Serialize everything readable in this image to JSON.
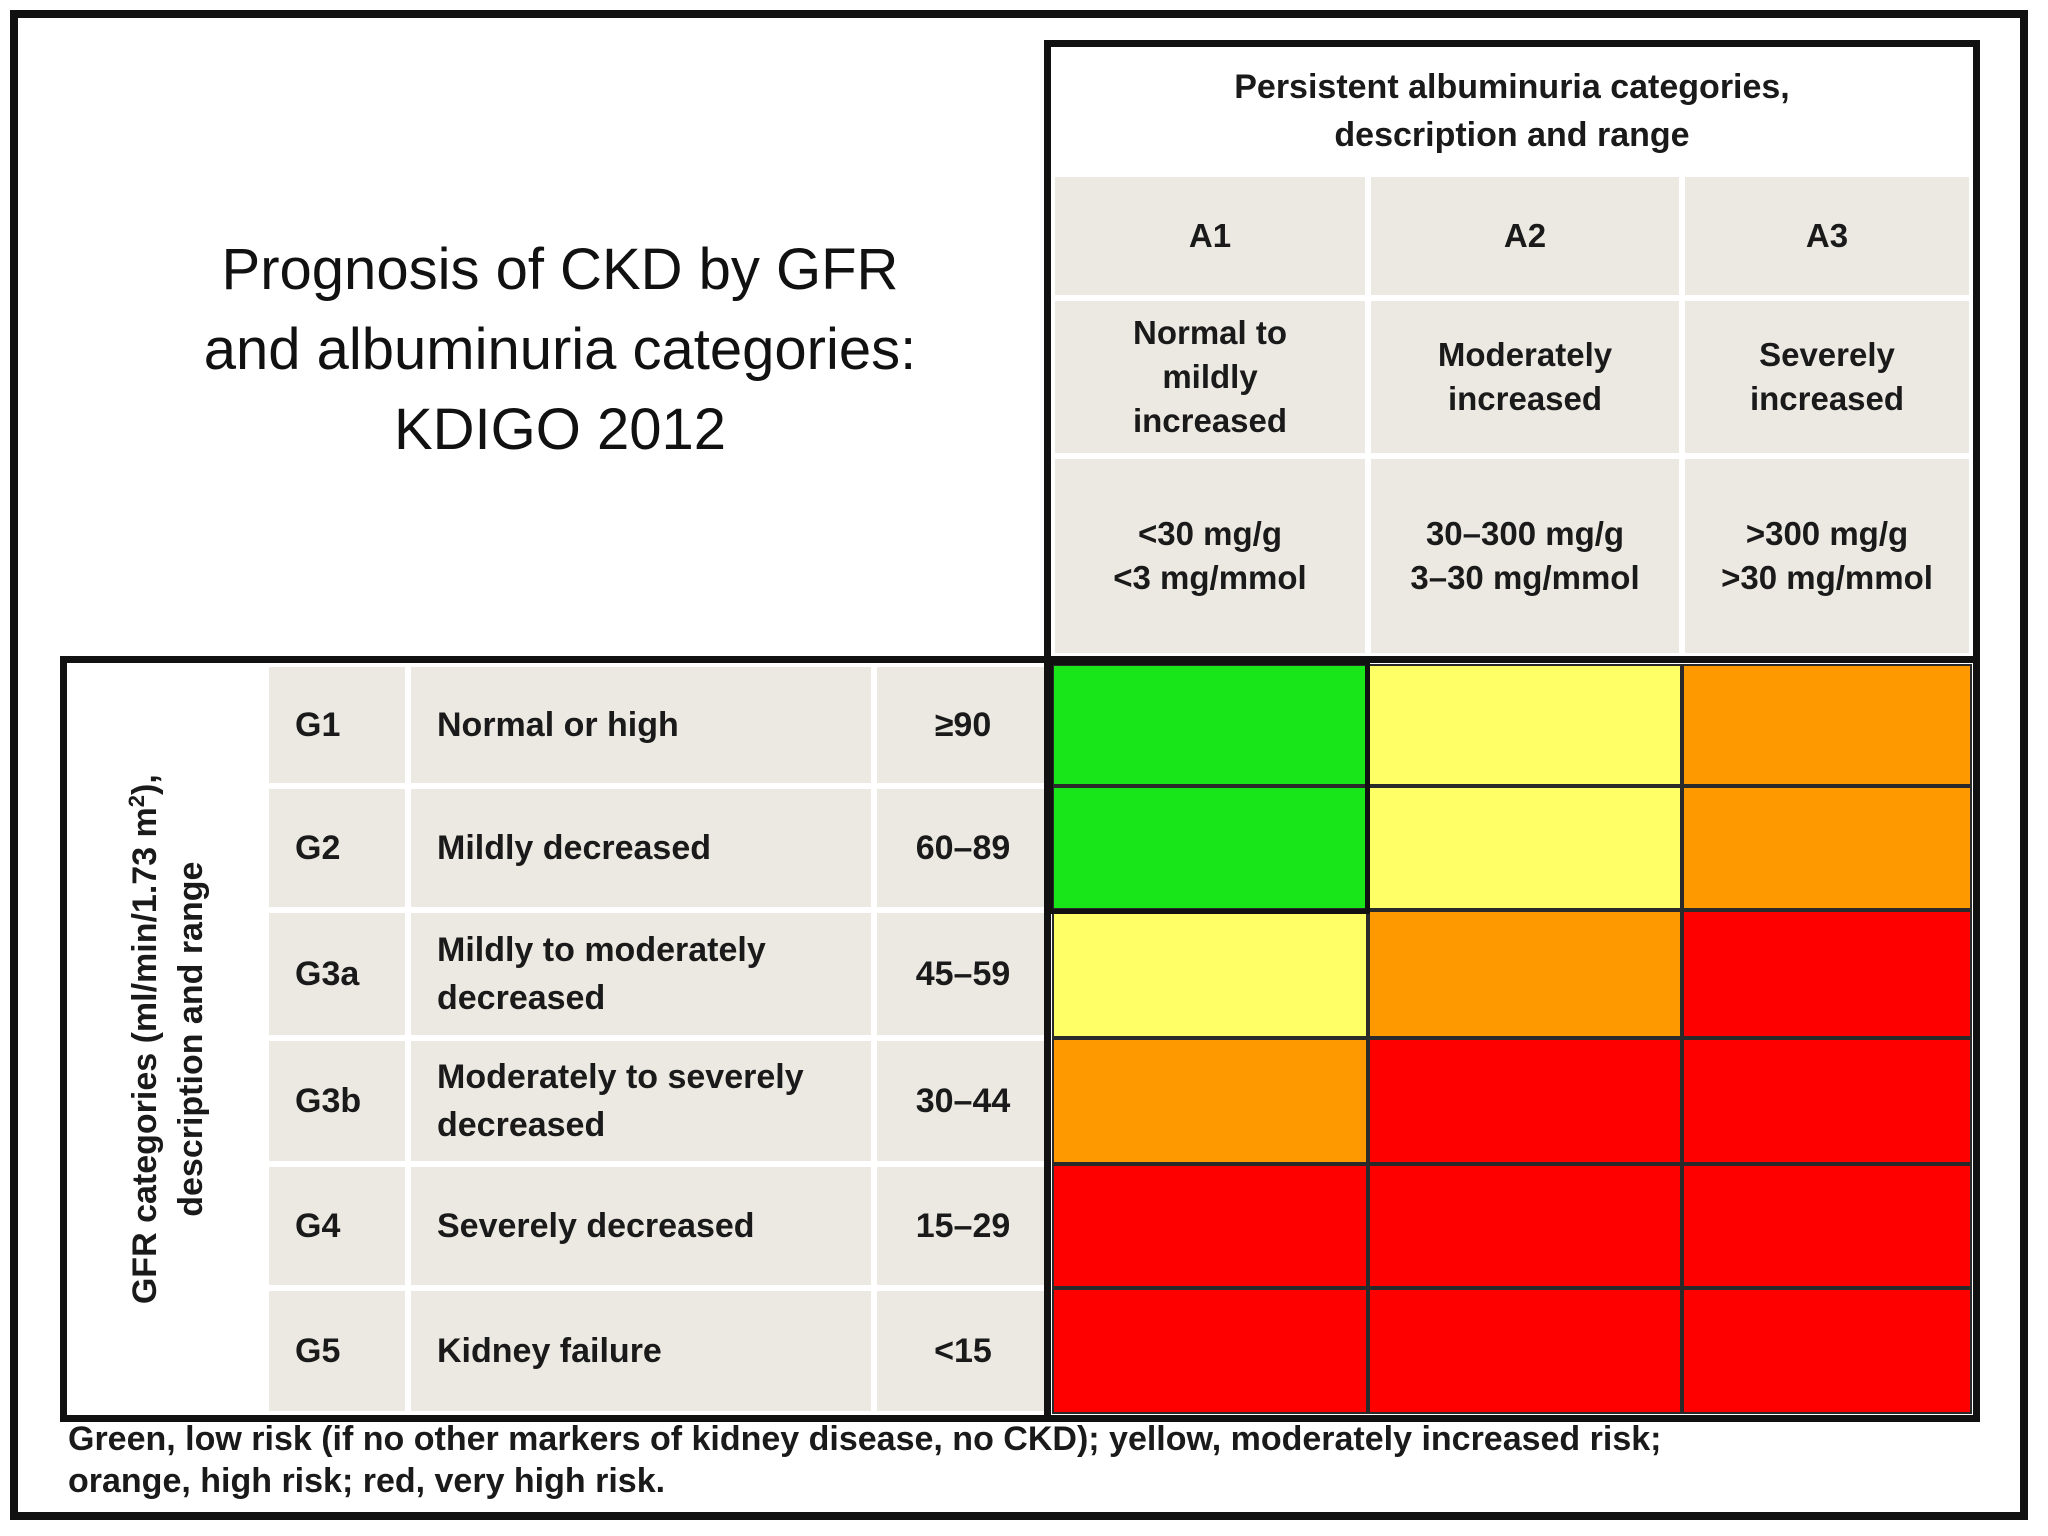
{
  "title": {
    "lines": [
      "Prognosis of CKD by GFR",
      "and albuminuria categories:",
      "KDIGO 2012"
    ]
  },
  "albuminuria": {
    "heading": [
      "Persistent albuminuria categories,",
      "description and range"
    ],
    "categories": [
      {
        "code": "A1",
        "description": [
          "Normal to",
          "mildly",
          "increased"
        ],
        "range": [
          "<30 mg/g",
          "<3 mg/mmol"
        ]
      },
      {
        "code": "A2",
        "description": [
          "Moderately",
          "increased"
        ],
        "range": [
          "30–300 mg/g",
          "3–30 mg/mmol"
        ]
      },
      {
        "code": "A3",
        "description": [
          "Severely",
          "increased"
        ],
        "range": [
          ">300 mg/g",
          ">30 mg/mmol"
        ]
      }
    ]
  },
  "gfr": {
    "axis_label": {
      "line1_pre": "GFR categories (ml/min/1.73 m",
      "line1_sup": "2",
      "line1_post": "),",
      "line2": "description and range"
    },
    "rows": [
      {
        "code": "G1",
        "description": "Normal or high",
        "range": "≥90",
        "risk": [
          "low",
          "moderate",
          "high"
        ]
      },
      {
        "code": "G2",
        "description": "Mildly decreased",
        "range": "60–89",
        "risk": [
          "low",
          "moderate",
          "high"
        ]
      },
      {
        "code": "G3a",
        "description": "Mildly to moderately decreased",
        "range": "45–59",
        "risk": [
          "moderate",
          "high",
          "very_high"
        ]
      },
      {
        "code": "G3b",
        "description": "Moderately to severely decreased",
        "range": "30–44",
        "risk": [
          "high",
          "very_high",
          "very_high"
        ]
      },
      {
        "code": "G4",
        "description": "Severely decreased",
        "range": "15–29",
        "risk": [
          "very_high",
          "very_high",
          "very_high"
        ]
      },
      {
        "code": "G5",
        "description": "Kidney failure",
        "range": "<15",
        "risk": [
          "very_high",
          "very_high",
          "very_high"
        ]
      }
    ]
  },
  "risk_colors": {
    "low": "#19e619",
    "moderate": "#ffff66",
    "high": "#ff9900",
    "very_high": "#ff0000"
  },
  "footnote": {
    "line1": "Green, low risk (if no other markers of kidney disease, no CKD); yellow, moderately increased risk;",
    "line2": "orange, high risk; red, very high risk."
  }
}
